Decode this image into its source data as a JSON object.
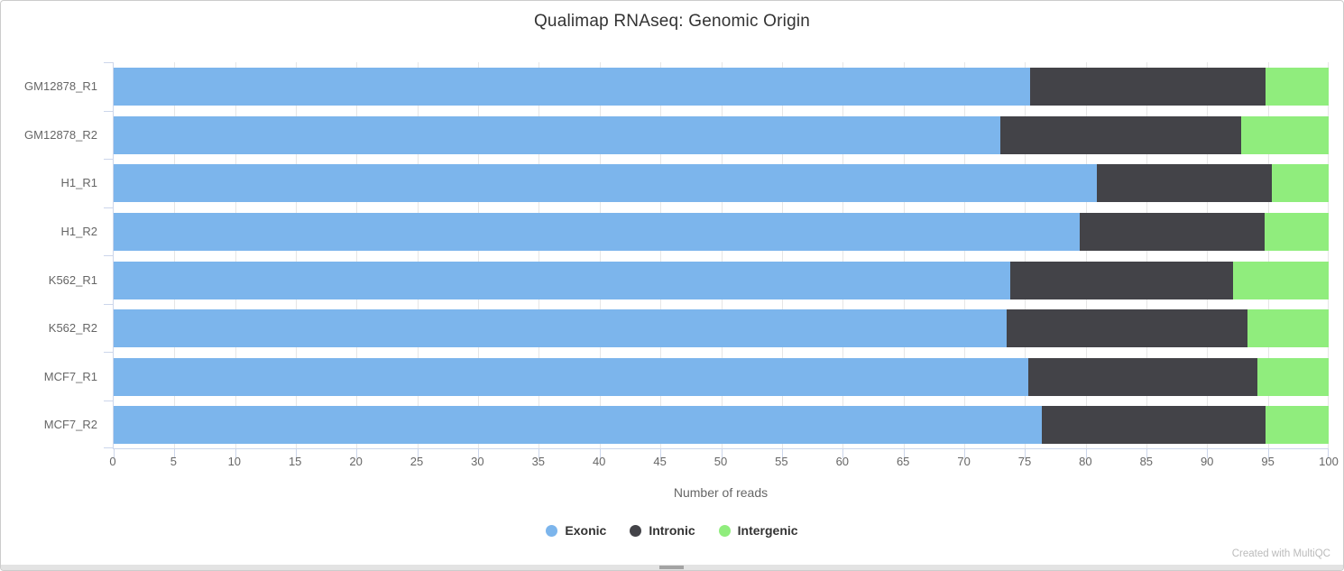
{
  "chart_data": {
    "type": "bar",
    "orientation": "horizontal",
    "stacked": true,
    "title": "Qualimap RNAseq: Genomic Origin",
    "xlabel": "Number of reads",
    "ylabel": "",
    "categories": [
      "GM12878_R1",
      "GM12878_R2",
      "H1_R1",
      "H1_R2",
      "K562_R1",
      "K562_R2",
      "MCF7_R1",
      "MCF7_R2"
    ],
    "series": [
      {
        "name": "Exonic",
        "color": "#7cb5ec",
        "values": [
          75.4,
          73.0,
          80.9,
          79.5,
          73.8,
          73.5,
          75.3,
          76.4
        ]
      },
      {
        "name": "Intronic",
        "color": "#434348",
        "values": [
          19.4,
          19.8,
          14.4,
          15.2,
          18.3,
          19.8,
          18.8,
          18.4
        ]
      },
      {
        "name": "Intergenic",
        "color": "#90ed7d",
        "values": [
          5.2,
          7.2,
          4.7,
          5.3,
          7.9,
          6.7,
          5.9,
          5.2
        ]
      }
    ],
    "xlim": [
      0,
      100
    ],
    "x_ticks": [
      0,
      5,
      10,
      15,
      20,
      25,
      30,
      35,
      40,
      45,
      50,
      55,
      60,
      65,
      70,
      75,
      80,
      85,
      90,
      95,
      100
    ],
    "grid": true,
    "legend_position": "bottom",
    "axis_line_color": "#ccd6eb",
    "gridline_color": "#e6e6e6",
    "label_color": "#666666"
  },
  "footer": {
    "credit": "Created with MultiQC"
  }
}
